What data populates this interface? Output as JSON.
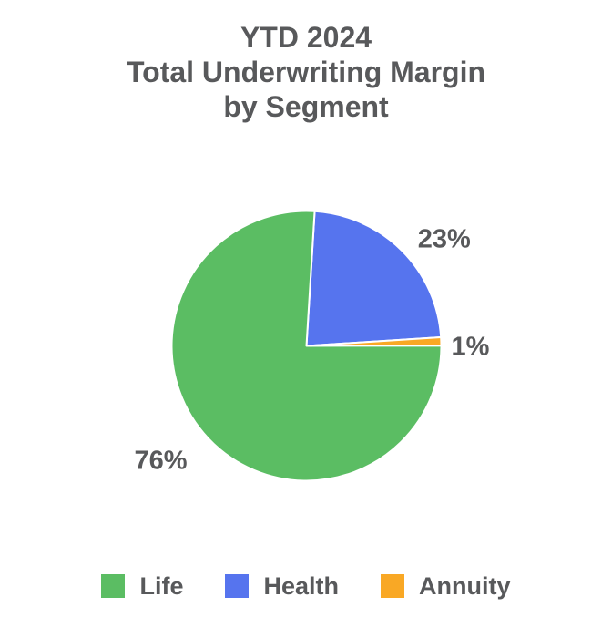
{
  "chart_data": {
    "type": "pie",
    "title": "YTD 2024\nTotal Underwriting Margin\nby Segment",
    "segments": [
      {
        "name": "Life",
        "value": 76,
        "percent_label": "76%",
        "color": "#5BBD63",
        "label_angle_deg": 232,
        "label_radius": 203
      },
      {
        "name": "Health",
        "value": 23,
        "percent_label": "23%",
        "color": "#5674EE",
        "label_angle_deg": 52,
        "label_radius": 192
      },
      {
        "name": "Annuity",
        "value": 1,
        "percent_label": "1%",
        "color": "#F9A825",
        "label_angle_deg": 90,
        "label_radius": 180
      }
    ],
    "draw_order": [
      "Health",
      "Annuity",
      "Life"
    ],
    "clockwise": true,
    "start_angle_deg": 3.5,
    "legend_position": "bottom",
    "slice_separator_color": "#ffffff",
    "text_color": "#58595B",
    "background_color": "#ffffff"
  }
}
